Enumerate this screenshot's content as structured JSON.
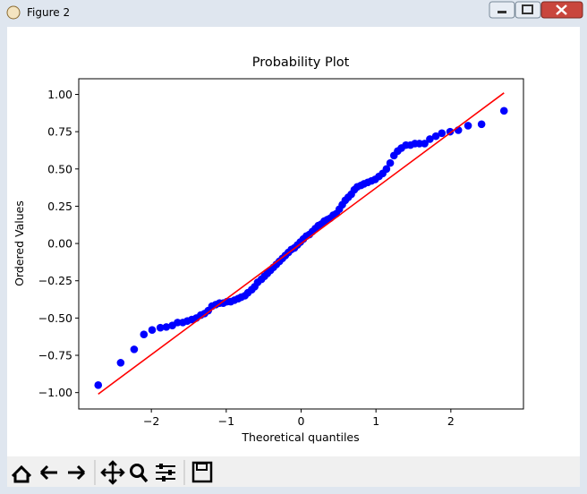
{
  "window": {
    "title": "Figure 2"
  },
  "chart_data": {
    "type": "scatter",
    "title": "Probability Plot",
    "x_label": "Theoretical quantiles",
    "y_label": "Ordered Values",
    "xlim": [
      -2.97,
      2.97
    ],
    "ylim": [
      -1.11,
      1.105
    ],
    "xticks": [
      {
        "value": -2,
        "label": "−2"
      },
      {
        "value": -1,
        "label": "−1"
      },
      0,
      1,
      2
    ],
    "yticks": [
      {
        "value": -1,
        "label": "−1.00"
      },
      {
        "value": -0.75,
        "label": "−0.75"
      },
      {
        "value": -0.5,
        "label": "−0.50"
      },
      {
        "value": -0.25,
        "label": "−0.25"
      },
      {
        "value": 0,
        "label": "0.00"
      },
      {
        "value": 0.25,
        "label": "0.25"
      },
      {
        "value": 0.5,
        "label": "0.50"
      },
      {
        "value": 0.75,
        "label": "0.75"
      },
      {
        "value": 1,
        "label": "1.00"
      }
    ],
    "points": {
      "color": "#0000ff",
      "x": [
        -2.71,
        -2.41,
        -2.23,
        -2.1,
        -1.99,
        -1.88,
        -1.8,
        -1.72,
        -1.65,
        -1.58,
        -1.52,
        -1.46,
        -1.4,
        -1.34,
        -1.29,
        -1.24,
        -1.19,
        -1.14,
        -1.09,
        -1.04,
        -0.99,
        -0.94,
        -0.89,
        -0.84,
        -0.8,
        -0.75,
        -0.71,
        -0.66,
        -0.62,
        -0.58,
        -0.53,
        -0.49,
        -0.45,
        -0.41,
        -0.37,
        -0.33,
        -0.29,
        -0.25,
        -0.21,
        -0.17,
        -0.13,
        -0.09,
        -0.05,
        -0.01,
        0.03,
        0.07,
        0.11,
        0.15,
        0.19,
        0.23,
        0.27,
        0.31,
        0.35,
        0.39,
        0.43,
        0.47,
        0.51,
        0.55,
        0.59,
        0.63,
        0.67,
        0.71,
        0.75,
        0.8,
        0.84,
        0.89,
        0.94,
        0.99,
        1.04,
        1.09,
        1.14,
        1.19,
        1.24,
        1.29,
        1.34,
        1.4,
        1.46,
        1.52,
        1.58,
        1.65,
        1.72,
        1.8,
        1.88,
        1.99,
        2.1,
        2.23,
        2.41,
        2.71
      ],
      "y": [
        -0.95,
        -0.8,
        -0.71,
        -0.61,
        -0.58,
        -0.565,
        -0.56,
        -0.55,
        -0.53,
        -0.53,
        -0.52,
        -0.51,
        -0.5,
        -0.48,
        -0.47,
        -0.45,
        -0.42,
        -0.41,
        -0.4,
        -0.4,
        -0.39,
        -0.39,
        -0.38,
        -0.37,
        -0.36,
        -0.35,
        -0.33,
        -0.31,
        -0.29,
        -0.26,
        -0.24,
        -0.22,
        -0.2,
        -0.18,
        -0.16,
        -0.14,
        -0.12,
        -0.1,
        -0.08,
        -0.06,
        -0.04,
        -0.03,
        -0.01,
        0.01,
        0.03,
        0.05,
        0.06,
        0.08,
        0.1,
        0.12,
        0.13,
        0.15,
        0.16,
        0.17,
        0.19,
        0.2,
        0.23,
        0.26,
        0.29,
        0.31,
        0.33,
        0.36,
        0.38,
        0.39,
        0.4,
        0.41,
        0.42,
        0.43,
        0.45,
        0.47,
        0.5,
        0.54,
        0.59,
        0.62,
        0.64,
        0.66,
        0.66,
        0.67,
        0.67,
        0.67,
        0.7,
        0.72,
        0.74,
        0.75,
        0.76,
        0.79,
        0.8,
        0.89
      ]
    },
    "fit_line": {
      "color": "#ff0000",
      "x": [
        -2.71,
        2.71
      ],
      "y": [
        -1.01,
        1.01
      ]
    }
  }
}
